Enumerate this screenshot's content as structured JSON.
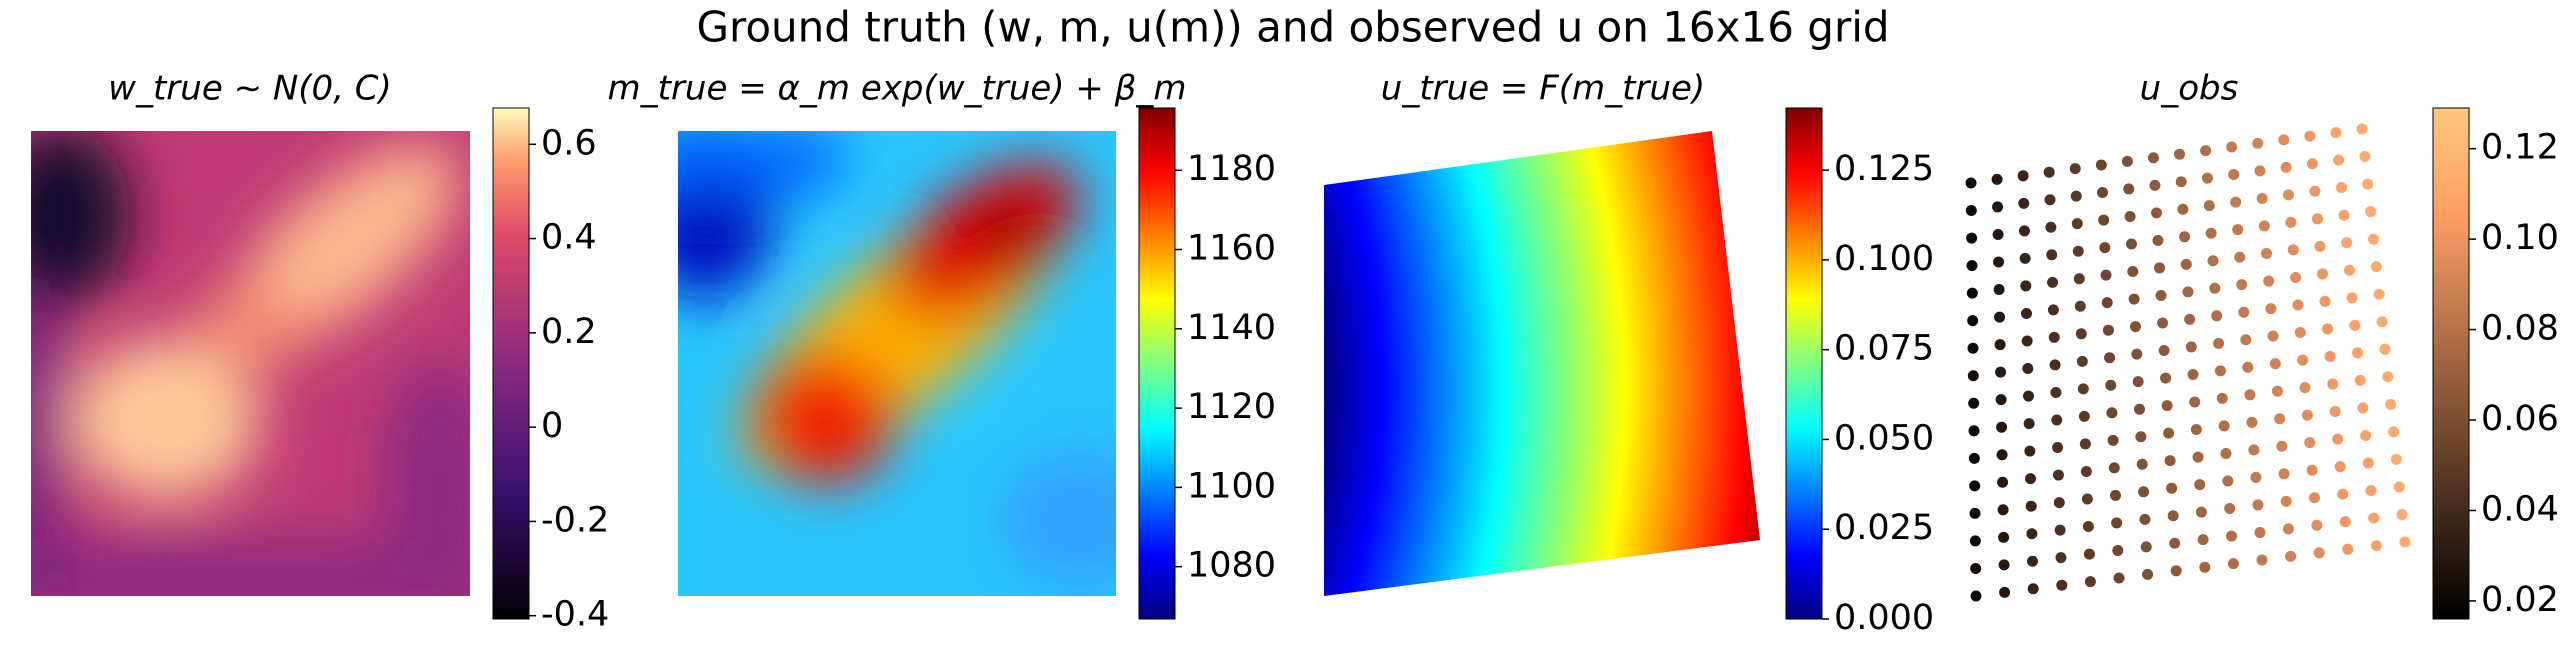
{
  "title": "Ground truth (w, m, u(m)) and observed u on 16x16 grid",
  "chart_data": [
    {
      "type": "heatmap",
      "title": "w_true ∼ N(0, C)",
      "colormap": "magma",
      "clim": [
        -0.407,
        0.677
      ],
      "cticks": [
        -0.4,
        -0.2,
        0.0,
        0.2,
        0.4,
        0.6
      ]
    },
    {
      "type": "heatmap",
      "title": "m_true = α_m exp(w_true) + β_m",
      "colormap": "jet",
      "clim": [
        1066.8,
        1195.7
      ],
      "cticks": [
        1080,
        1100,
        1120,
        1140,
        1160,
        1180
      ]
    },
    {
      "type": "heatmap",
      "title": "u_true = F(m_true)",
      "colormap": "jet",
      "clim": [
        0,
        0.1423
      ],
      "cticks": [
        {
          "value": 0,
          "label": "0.000"
        },
        {
          "value": 0.025,
          "label": "0.025"
        },
        {
          "value": 0.05,
          "label": "0.050"
        },
        {
          "value": 0.075,
          "label": "0.075"
        },
        {
          "value": 0.1,
          "label": "0.100"
        },
        {
          "value": 0.125,
          "label": "0.125"
        }
      ]
    },
    {
      "type": "scatter",
      "title": "u_obs",
      "colormap": "copper",
      "clim": [
        0.016,
        0.129
      ],
      "cticks": [
        0.02,
        0.04,
        0.06,
        {
          "value": 0.08,
          "label": "0.08"
        },
        {
          "value": 0.1,
          "label": "0.10"
        },
        0.12
      ]
    }
  ]
}
